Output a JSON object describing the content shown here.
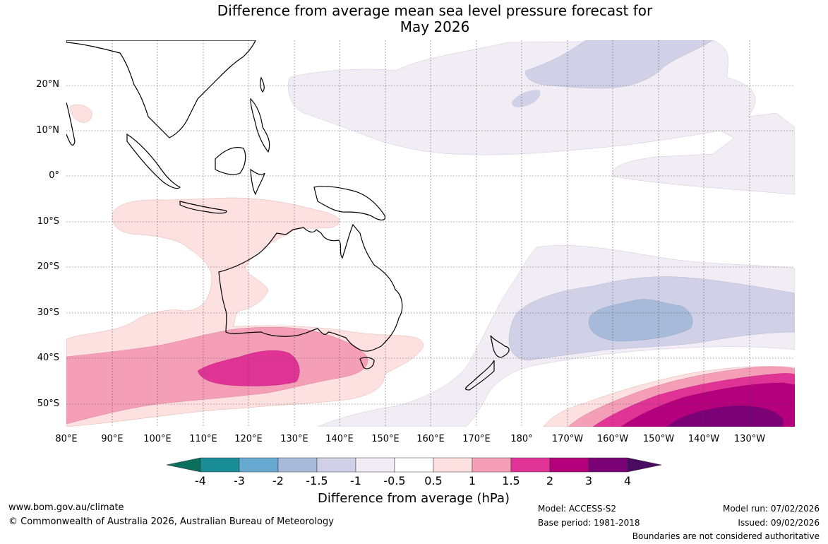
{
  "title": {
    "line1": "Difference from average mean sea level pressure forecast for",
    "line2": "May 2026"
  },
  "map": {
    "lat_labels": [
      "20°N",
      "10°N",
      "0°",
      "10°S",
      "20°S",
      "30°S",
      "40°S",
      "50°S"
    ],
    "lon_labels": [
      "80°E",
      "90°E",
      "100°E",
      "110°E",
      "120°E",
      "130°E",
      "140°E",
      "150°E",
      "160°E",
      "170°E",
      "180°",
      "170°W",
      "160°W",
      "150°W",
      "140°W",
      "130°W"
    ]
  },
  "colorbar": {
    "title": "Difference from average (hPa)",
    "labels": [
      "-4",
      "-3",
      "-2",
      "-1.5",
      "-1",
      "-0.5",
      "0.5",
      "1",
      "1.5",
      "2",
      "3",
      "4"
    ],
    "colors": [
      "#0b6f5e",
      "#1a8e96",
      "#67a9d0",
      "#a7bad9",
      "#d0d1e6",
      "#f2ecf5",
      "#ffffff",
      "#fde0e0",
      "#f59eb8",
      "#df3496",
      "#b5007d",
      "#7a0176",
      "#4a0a62"
    ]
  },
  "footer": {
    "url": "www.bom.gov.au/climate",
    "copyright": "© Commonwealth of Australia 2026, Australian Bureau of Meteorology",
    "model": "Model: ACCESS-S2",
    "base_period": "Base period: 1981-2018",
    "model_run": "Model run: 07/02/2026",
    "issued": "Issued: 09/02/2026",
    "disclaimer": "Boundaries are not considered authoritative"
  }
}
